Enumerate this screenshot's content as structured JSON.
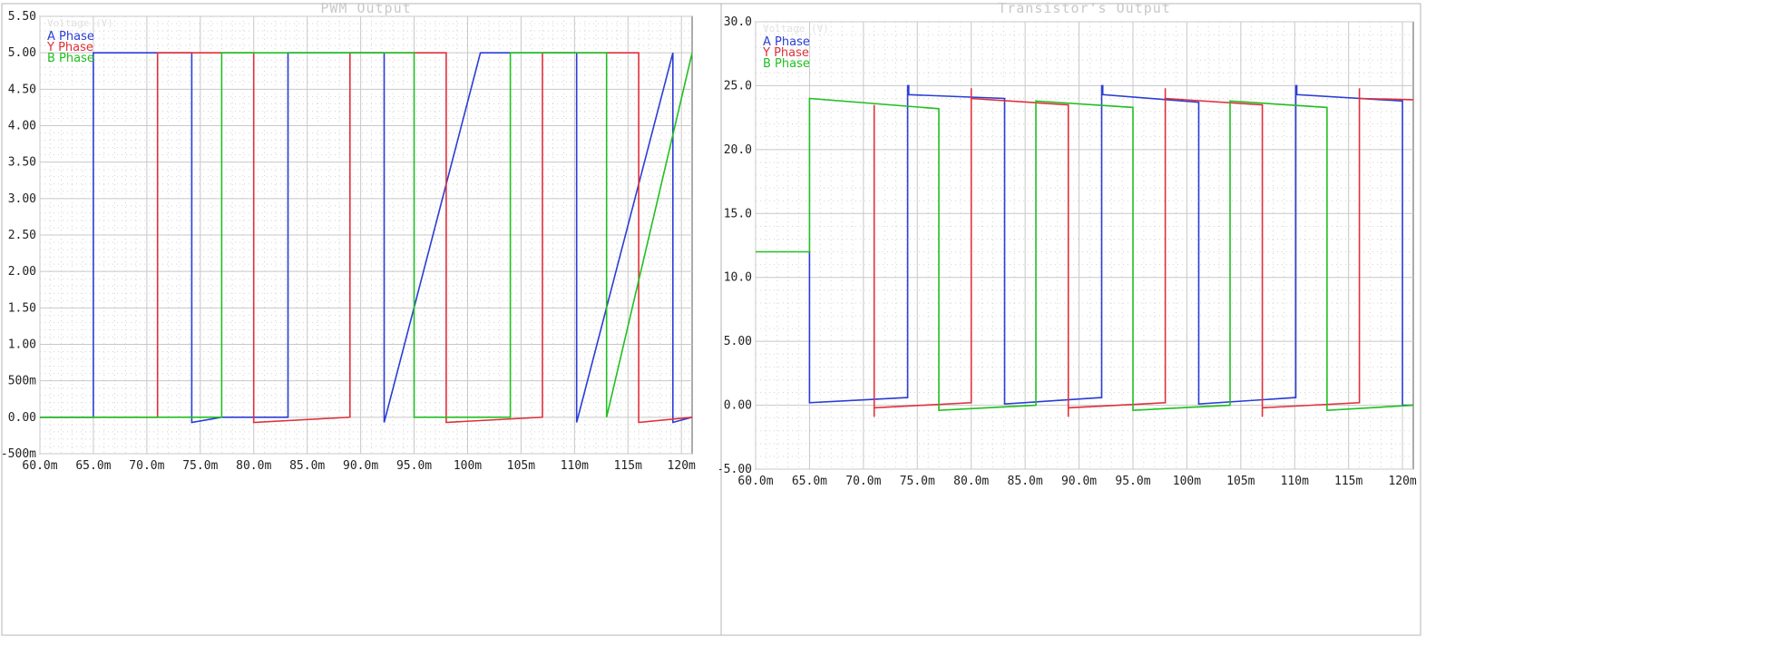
{
  "chart_data": [
    {
      "type": "line",
      "title": "PWM Output",
      "ylabel_ghost": "Voltage (V)",
      "xlim": [
        60,
        121
      ],
      "ylim": [
        -0.5,
        5.5
      ],
      "x_ticks": [
        60,
        65,
        70,
        75,
        80,
        85,
        90,
        95,
        100,
        105,
        110,
        115,
        120
      ],
      "x_tick_labels": [
        "60.0m",
        "65.0m",
        "70.0m",
        "75.0m",
        "80.0m",
        "85.0m",
        "90.0m",
        "95.0m",
        "100m",
        "105m",
        "110m",
        "115m",
        "120m"
      ],
      "y_ticks": [
        -0.5,
        0,
        0.5,
        1,
        1.5,
        2,
        2.5,
        3,
        3.5,
        4,
        4.5,
        5,
        5.5
      ],
      "y_tick_labels": [
        "-500m",
        "0.00",
        "500m",
        "1.00",
        "1.50",
        "2.00",
        "2.50",
        "3.00",
        "3.50",
        "4.00",
        "4.50",
        "5.00",
        "5.50"
      ],
      "legend_position": "top-left",
      "series": [
        {
          "name": "A Phase",
          "color": "#2a3dd6",
          "x": [
            60,
            65,
            65,
            74.2,
            74.2,
            77.0,
            83.2,
            83.2,
            92.2,
            92.2,
            101.2,
            101.2,
            110.2,
            110.2,
            119.2,
            119.2,
            121
          ],
          "y": [
            0,
            0,
            5,
            5,
            -0.07,
            0,
            0,
            5,
            5,
            -0.07,
            5,
            5,
            5,
            -0.07,
            5,
            -0.07,
            0
          ]
        },
        {
          "name": "Y Phase",
          "color": "#e0303a",
          "x": [
            60,
            71.0,
            71.0,
            80.0,
            80.0,
            89.0,
            89.0,
            98.0,
            98.0,
            107.0,
            107.0,
            116.0,
            116.0,
            121
          ],
          "y": [
            0,
            0,
            5,
            5,
            -0.07,
            0,
            5,
            5,
            -0.07,
            0,
            5,
            5,
            -0.07,
            0
          ]
        },
        {
          "name": "B Phase",
          "color": "#20c020",
          "x": [
            60,
            65,
            65,
            77.0,
            77.0,
            86.0,
            86.0,
            95.0,
            95.0,
            104.0,
            104.0,
            113.0,
            113.0,
            121
          ],
          "y": [
            0,
            0,
            0,
            0,
            5,
            5,
            5,
            5,
            0,
            0,
            5,
            5,
            0,
            5
          ]
        }
      ]
    },
    {
      "type": "line",
      "title": "Transistor's Output",
      "ylabel_ghost": "Voltage (V)",
      "xlim": [
        60,
        121
      ],
      "ylim": [
        -5,
        30
      ],
      "x_ticks": [
        60,
        65,
        70,
        75,
        80,
        85,
        90,
        95,
        100,
        105,
        110,
        115,
        120
      ],
      "x_tick_labels": [
        "60.0m",
        "65.0m",
        "70.0m",
        "75.0m",
        "80.0m",
        "85.0m",
        "90.0m",
        "95.0m",
        "100m",
        "105m",
        "110m",
        "115m",
        "120m"
      ],
      "y_ticks": [
        -5,
        0,
        5,
        10,
        15,
        20,
        25,
        30
      ],
      "y_tick_labels": [
        "-5.00",
        "0.00",
        "5.00",
        "10.0",
        "15.0",
        "20.0",
        "25.0",
        "30.0"
      ],
      "legend_position": "top-left",
      "series": [
        {
          "name": "A Phase",
          "color": "#2a3dd6",
          "x": [
            65,
            65,
            74.1,
            74.1,
            74.2,
            74.2,
            83.1,
            83.1,
            92.1,
            92.1,
            92.2,
            92.2,
            101.1,
            101.1,
            110.1,
            110.1,
            110.2,
            110.2,
            120,
            120,
            121
          ],
          "y": [
            12,
            0.2,
            0.6,
            25,
            25,
            24.3,
            24.0,
            0.1,
            0.6,
            25,
            25,
            24.3,
            23.7,
            0.1,
            0.6,
            25,
            25,
            24.3,
            23.8,
            0,
            0
          ]
        },
        {
          "name": "Y Phase",
          "color": "#e0303a",
          "x": [
            71.0,
            71.0,
            71.0,
            80.0,
            80.0,
            80.0,
            89.0,
            89.0,
            89.0,
            98.0,
            98.0,
            98.0,
            107.0,
            107.0,
            107.0,
            116.0,
            116.0,
            116.0,
            121
          ],
          "y": [
            -0.9,
            23.5,
            -0.2,
            0.2,
            24.8,
            24.0,
            23.5,
            -0.9,
            -0.2,
            0.2,
            24.8,
            24.0,
            23.5,
            -0.9,
            -0.2,
            0.2,
            24.8,
            24.0,
            23.9
          ]
        },
        {
          "name": "B Phase",
          "color": "#20c020",
          "x": [
            60,
            65,
            65,
            77.0,
            77.0,
            86.0,
            86.0,
            95.0,
            95.0,
            104.0,
            104.0,
            113.0,
            113.0,
            121
          ],
          "y": [
            12,
            12,
            24,
            23.2,
            -0.4,
            0,
            23.8,
            23.3,
            -0.4,
            0,
            23.8,
            23.3,
            -0.4,
            0
          ]
        }
      ]
    }
  ]
}
